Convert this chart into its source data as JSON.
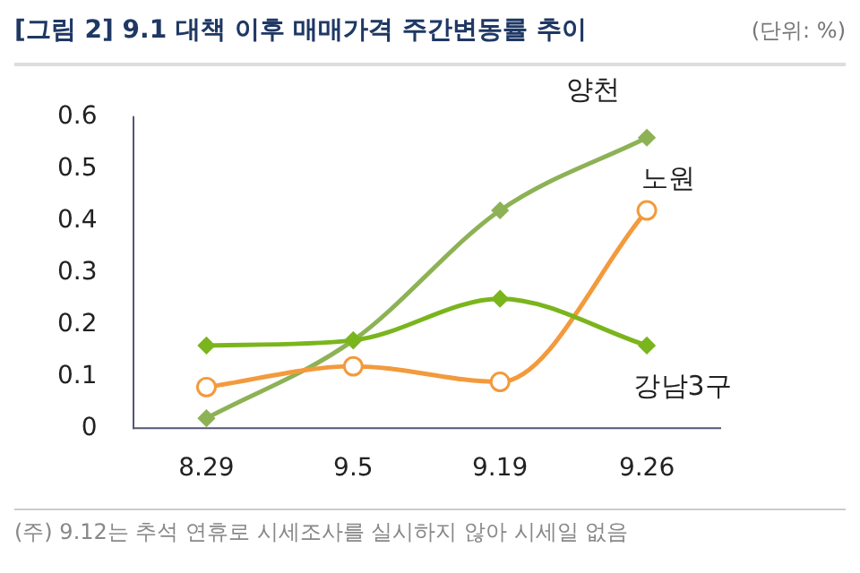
{
  "chart_data": {
    "type": "line",
    "title": "[그림 2] 9.1 대책 이후 매매가격 주간변동률 추이",
    "annotations": [
      "(단위: %)",
      "(주) 9.12는 추석 연휴로 시세조사를 실시하지 않아 시세일 없음"
    ],
    "categories": [
      "8.29",
      "9.5",
      "9.19",
      "9.26"
    ],
    "series": [
      {
        "name": "양천",
        "color": "#8db255",
        "values": [
          0.02,
          0.17,
          0.42,
          0.56
        ],
        "marker": "diamond"
      },
      {
        "name": "노원",
        "color": "#f39a3c",
        "values": [
          0.08,
          0.12,
          0.09,
          0.42
        ],
        "marker": "circle"
      },
      {
        "name": "강남3구",
        "color": "#7ab51d",
        "values": [
          0.16,
          0.17,
          0.25,
          0.16
        ],
        "marker": "diamond"
      }
    ],
    "ylim": [
      0,
      0.6
    ],
    "yticks": [
      0,
      0.1,
      0.2,
      0.3,
      0.4,
      0.5,
      0.6
    ],
    "grid": false,
    "legend": false
  }
}
